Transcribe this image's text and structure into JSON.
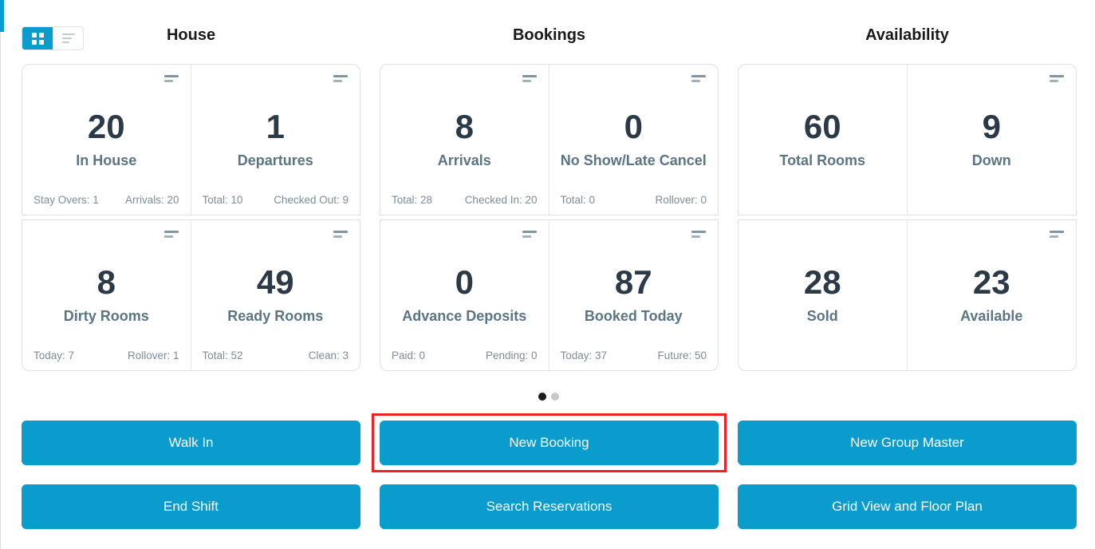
{
  "view_toggle": {
    "options": [
      {
        "icon": "grid-icon",
        "active": true
      },
      {
        "icon": "list-icon",
        "active": false
      }
    ]
  },
  "sections": [
    {
      "title": "House",
      "cards": [
        {
          "value": "20",
          "label": "In House",
          "footer_left": "Stay Overs: 1",
          "footer_right": "Arrivals: 20"
        },
        {
          "value": "1",
          "label": "Departures",
          "footer_left": "Total: 10",
          "footer_right": "Checked Out: 9"
        },
        {
          "value": "8",
          "label": "Dirty Rooms",
          "footer_left": "Today: 7",
          "footer_right": "Rollover: 1"
        },
        {
          "value": "49",
          "label": "Ready Rooms",
          "footer_left": "Total: 52",
          "footer_right": "Clean: 3"
        }
      ]
    },
    {
      "title": "Bookings",
      "cards": [
        {
          "value": "8",
          "label": "Arrivals",
          "footer_left": "Total: 28",
          "footer_right": "Checked In: 20"
        },
        {
          "value": "0",
          "label": "No Show/Late Cancel",
          "footer_left": "Total: 0",
          "footer_right": "Rollover: 0"
        },
        {
          "value": "0",
          "label": "Advance Deposits",
          "footer_left": "Paid: 0",
          "footer_right": "Pending: 0"
        },
        {
          "value": "87",
          "label": "Booked Today",
          "footer_left": "Today: 37",
          "footer_right": "Future: 50"
        }
      ]
    },
    {
      "title": "Availability",
      "cards": [
        {
          "value": "60",
          "label": "Total Rooms"
        },
        {
          "value": "9",
          "label": "Down"
        },
        {
          "value": "28",
          "label": "Sold"
        },
        {
          "value": "23",
          "label": "Available"
        }
      ]
    }
  ],
  "carousel": {
    "dots": [
      {
        "active": true
      },
      {
        "active": false
      }
    ]
  },
  "actions": [
    {
      "label": "Walk In"
    },
    {
      "label": "New Booking",
      "highlighted": true
    },
    {
      "label": "New Group Master"
    },
    {
      "label": "End Shift"
    },
    {
      "label": "Search Reservations"
    },
    {
      "label": "Grid View and Floor Plan"
    }
  ],
  "highlight_annotation": {
    "target": "New Booking",
    "color": "#f22020"
  },
  "colors": {
    "accent_blue": "#0a9ccd",
    "highlight_red": "#f22020",
    "value_text": "#2c3a47",
    "label_text": "#5b7583",
    "footer_text": "#7c8d99",
    "card_border": "#dfe2e5"
  }
}
